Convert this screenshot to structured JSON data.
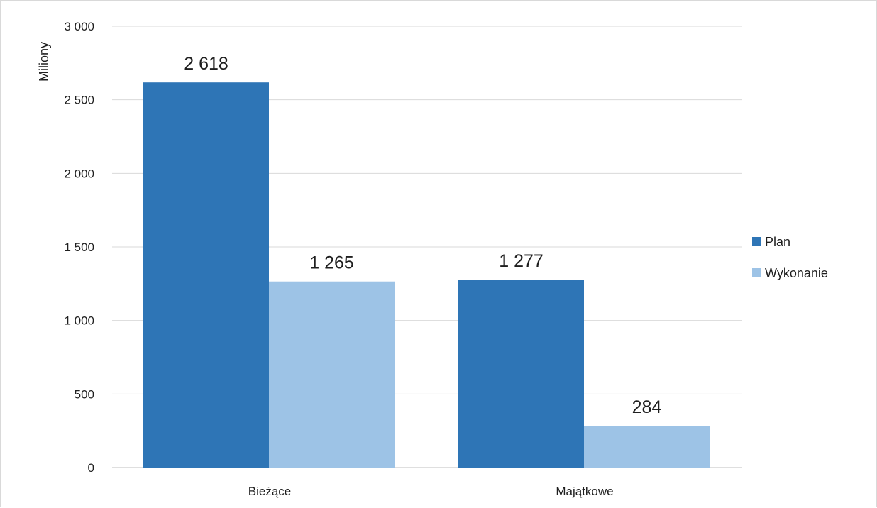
{
  "chart_data": {
    "type": "bar",
    "categories": [
      "Bieżące",
      "Majątkowe"
    ],
    "series": [
      {
        "name": "Plan",
        "values": [
          2618,
          1277
        ],
        "color": "#2e75b6",
        "labels": [
          "2 618",
          "1 277"
        ]
      },
      {
        "name": "Wykonanie",
        "values": [
          1265,
          284
        ],
        "color": "#9dc3e6",
        "labels": [
          "1 265",
          "284"
        ]
      }
    ],
    "ylabel": "Miliony",
    "ylim": [
      0,
      3000
    ],
    "yticks": [
      0,
      500,
      1000,
      1500,
      2000,
      2500,
      3000
    ],
    "ytick_labels": [
      "0",
      "500",
      "1 000",
      "1 500",
      "2 000",
      "2 500",
      "3 000"
    ],
    "grid": true,
    "legend_position": "right"
  }
}
